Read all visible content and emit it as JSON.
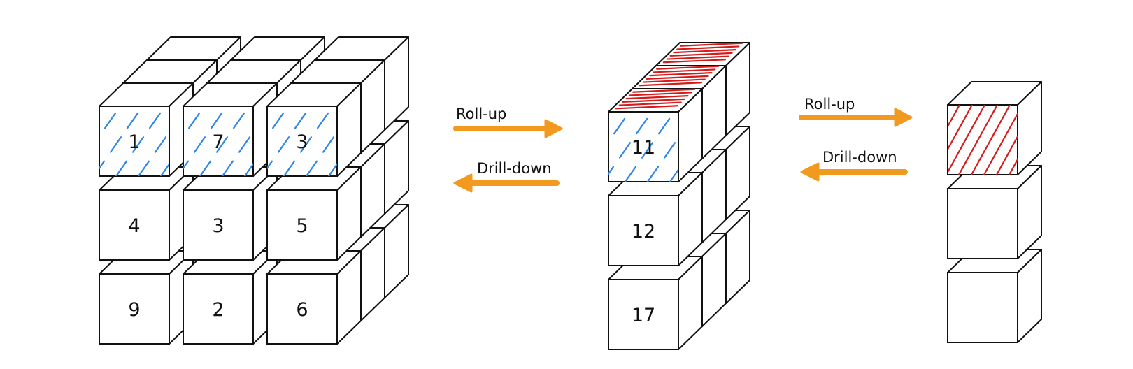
{
  "colors": {
    "ink": "#111111",
    "blue_hatch": "#2b86e6",
    "red_hatch": "#d41c1c",
    "arrow": "#f29a1f",
    "face": "#ffffff"
  },
  "cube_large": {
    "front_values": [
      [
        "1",
        "7",
        "3"
      ],
      [
        "4",
        "3",
        "5"
      ],
      [
        "9",
        "2",
        "6"
      ]
    ]
  },
  "cube_medium": {
    "front_values": [
      "11",
      "12",
      "17"
    ]
  },
  "cube_small": {
    "front_values": [
      "",
      "",
      ""
    ]
  },
  "transition_1": {
    "rollup_label": "Roll-up",
    "drilldown_label": "Drill-down"
  },
  "transition_2": {
    "rollup_label": "Roll-up",
    "drilldown_label": "Drill-down"
  }
}
